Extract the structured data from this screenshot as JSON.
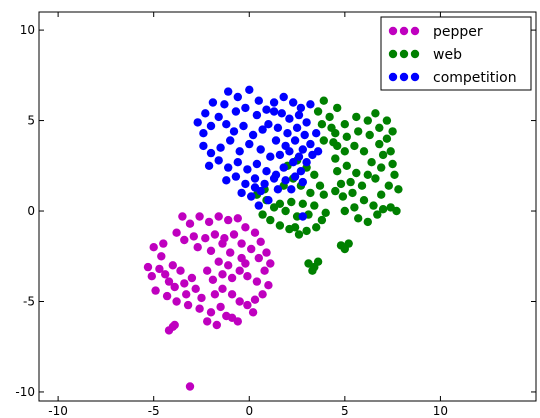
{
  "chart_data": {
    "type": "scatter",
    "title": "",
    "xlabel": "",
    "ylabel": "",
    "xlim": [
      -11,
      15
    ],
    "ylim": [
      -10.5,
      11
    ],
    "xticks": [
      -10,
      -5,
      0,
      5,
      10
    ],
    "yticks": [
      -10,
      -5,
      0,
      5,
      10
    ],
    "grid": false,
    "legend_position": "top-right",
    "series": [
      {
        "name": "pepper",
        "color": "#bf00bf",
        "points": [
          [
            -3.5,
            -0.3
          ],
          [
            -3.1,
            -0.7
          ],
          [
            -2.6,
            -0.3
          ],
          [
            -2.1,
            -0.6
          ],
          [
            -1.6,
            -0.3
          ],
          [
            -1.1,
            -0.5
          ],
          [
            -0.6,
            -0.4
          ],
          [
            -0.2,
            -0.9
          ],
          [
            0.3,
            -1.2
          ],
          [
            0.6,
            -1.7
          ],
          [
            0.9,
            -2.3
          ],
          [
            -3.8,
            -1.2
          ],
          [
            -3.4,
            -1.6
          ],
          [
            -2.9,
            -1.4
          ],
          [
            -2.3,
            -1.5
          ],
          [
            -1.8,
            -1.3
          ],
          [
            -1.3,
            -1.5
          ],
          [
            -0.8,
            -1.3
          ],
          [
            -0.4,
            -1.8
          ],
          [
            0.1,
            -2.1
          ],
          [
            0.5,
            -2.6
          ],
          [
            -2.7,
            -2.0
          ],
          [
            -2.0,
            -2.2
          ],
          [
            -1.4,
            -1.8
          ],
          [
            -1.0,
            -2.3
          ],
          [
            -0.4,
            -2.6
          ],
          [
            -5.0,
            -2.0
          ],
          [
            -4.6,
            -2.5
          ],
          [
            -5.3,
            -3.1
          ],
          [
            -4.7,
            -3.2
          ],
          [
            -5.1,
            -3.6
          ],
          [
            -4.4,
            -3.5
          ],
          [
            -4.0,
            -3.0
          ],
          [
            -3.6,
            -3.3
          ],
          [
            -4.2,
            -3.9
          ],
          [
            -3.9,
            -4.2
          ],
          [
            -3.4,
            -4.0
          ],
          [
            -3.0,
            -3.7
          ],
          [
            -2.8,
            -4.3
          ],
          [
            -3.3,
            -4.6
          ],
          [
            -2.5,
            -4.8
          ],
          [
            -4.3,
            -4.7
          ],
          [
            -3.8,
            -5.0
          ],
          [
            -3.2,
            -5.2
          ],
          [
            -2.6,
            -5.4
          ],
          [
            -2.0,
            -5.6
          ],
          [
            -1.5,
            -5.3
          ],
          [
            -1.2,
            -5.8
          ],
          [
            -0.9,
            -5.9
          ],
          [
            -1.8,
            -4.6
          ],
          [
            -1.4,
            -4.3
          ],
          [
            -0.9,
            -4.6
          ],
          [
            -0.5,
            -5.0
          ],
          [
            -0.1,
            -5.2
          ],
          [
            0.3,
            -4.9
          ],
          [
            0.7,
            -4.6
          ],
          [
            1.0,
            -4.1
          ],
          [
            -2.2,
            -3.3
          ],
          [
            -1.9,
            -3.8
          ],
          [
            -1.4,
            -3.5
          ],
          [
            -0.9,
            -3.7
          ],
          [
            -0.5,
            -3.3
          ],
          [
            -1.6,
            -2.8
          ],
          [
            -1.1,
            -3.0
          ],
          [
            -0.1,
            -3.6
          ],
          [
            0.4,
            -3.9
          ],
          [
            0.8,
            -3.3
          ],
          [
            1.1,
            -2.9
          ],
          [
            -0.2,
            -2.9
          ],
          [
            -4.5,
            -1.8
          ],
          [
            -4.9,
            -4.4
          ],
          [
            -2.2,
            -6.1
          ],
          [
            -1.7,
            -6.3
          ],
          [
            -0.6,
            -6.1
          ],
          [
            0.2,
            -5.6
          ],
          [
            -4.2,
            -6.6
          ],
          [
            -4.0,
            -6.4
          ],
          [
            -3.9,
            -6.3
          ],
          [
            -3.1,
            -9.7
          ]
        ]
      },
      {
        "name": "web",
        "color": "#008000",
        "points": [
          [
            2.0,
            2.5
          ],
          [
            2.5,
            2.8
          ],
          [
            3.0,
            2.4
          ],
          [
            3.4,
            2.0
          ],
          [
            3.7,
            1.4
          ],
          [
            3.9,
            0.9
          ],
          [
            2.3,
            1.8
          ],
          [
            1.8,
            1.4
          ],
          [
            2.7,
            1.4
          ],
          [
            3.2,
            1.0
          ],
          [
            0.8,
            1.2
          ],
          [
            0.4,
            0.9
          ],
          [
            0.9,
            0.6
          ],
          [
            1.3,
            0.2
          ],
          [
            0.7,
            -0.2
          ],
          [
            1.1,
            -0.5
          ],
          [
            1.6,
            -0.8
          ],
          [
            2.1,
            -1.0
          ],
          [
            2.6,
            -1.3
          ],
          [
            3.0,
            -1.1
          ],
          [
            3.5,
            -0.9
          ],
          [
            3.8,
            -0.5
          ],
          [
            4.0,
            -0.1
          ],
          [
            1.9,
            0.0
          ],
          [
            2.5,
            -0.3
          ],
          [
            3.1,
            -0.2
          ],
          [
            3.4,
            0.3
          ],
          [
            2.8,
            0.4
          ],
          [
            2.2,
            0.5
          ],
          [
            1.6,
            0.4
          ],
          [
            2.4,
            -0.9
          ],
          [
            3.1,
            -2.9
          ],
          [
            3.4,
            -3.1
          ],
          [
            3.6,
            -2.8
          ],
          [
            3.3,
            -3.3
          ],
          [
            4.8,
            -1.9
          ],
          [
            5.0,
            -2.1
          ],
          [
            5.2,
            -1.8
          ],
          [
            4.5,
            4.3
          ],
          [
            5.0,
            4.8
          ],
          [
            5.6,
            5.2
          ],
          [
            6.2,
            5.0
          ],
          [
            6.8,
            4.6
          ],
          [
            7.2,
            4.0
          ],
          [
            7.4,
            3.3
          ],
          [
            7.5,
            2.6
          ],
          [
            7.6,
            2.0
          ],
          [
            7.3,
            1.4
          ],
          [
            6.9,
            0.9
          ],
          [
            4.6,
            3.6
          ],
          [
            5.1,
            4.1
          ],
          [
            5.7,
            4.4
          ],
          [
            6.3,
            4.2
          ],
          [
            6.8,
            3.7
          ],
          [
            7.0,
            3.1
          ],
          [
            6.9,
            2.4
          ],
          [
            6.6,
            1.8
          ],
          [
            4.5,
            2.9
          ],
          [
            5.0,
            3.3
          ],
          [
            5.5,
            3.6
          ],
          [
            6.0,
            3.3
          ],
          [
            6.4,
            2.7
          ],
          [
            6.2,
            2.0
          ],
          [
            5.9,
            1.4
          ],
          [
            5.4,
            1.0
          ],
          [
            4.9,
            0.8
          ],
          [
            4.6,
            2.2
          ],
          [
            5.1,
            2.5
          ],
          [
            5.6,
            2.1
          ],
          [
            5.3,
            1.6
          ],
          [
            4.8,
            1.5
          ],
          [
            4.5,
            1.1
          ],
          [
            6.0,
            0.6
          ],
          [
            6.5,
            0.3
          ],
          [
            7.0,
            0.1
          ],
          [
            5.5,
            0.2
          ],
          [
            5.0,
            0.0
          ],
          [
            5.7,
            -0.4
          ],
          [
            6.2,
            -0.6
          ],
          [
            6.7,
            -0.2
          ],
          [
            7.4,
            0.2
          ],
          [
            7.8,
            1.2
          ],
          [
            7.7,
            0.0
          ],
          [
            4.2,
            5.2
          ],
          [
            3.8,
            4.8
          ],
          [
            4.3,
            4.6
          ],
          [
            3.9,
            3.9
          ],
          [
            4.4,
            3.8
          ],
          [
            3.6,
            5.5
          ],
          [
            3.9,
            6.1
          ],
          [
            4.6,
            5.7
          ],
          [
            7.2,
            5.0
          ],
          [
            6.6,
            5.4
          ],
          [
            7.5,
            4.4
          ]
        ]
      },
      {
        "name": "competition",
        "color": "#0000ff",
        "points": [
          [
            -1.1,
            6.6
          ],
          [
            -0.6,
            6.3
          ],
          [
            0.0,
            6.7
          ],
          [
            0.5,
            6.1
          ],
          [
            0.9,
            5.6
          ],
          [
            0.4,
            5.3
          ],
          [
            -0.2,
            5.7
          ],
          [
            -0.7,
            5.5
          ],
          [
            -1.3,
            5.9
          ],
          [
            -1.9,
            6.0
          ],
          [
            -2.3,
            5.4
          ],
          [
            -2.7,
            4.9
          ],
          [
            -2.4,
            4.3
          ],
          [
            -2.0,
            4.7
          ],
          [
            -1.6,
            5.2
          ],
          [
            -1.2,
            4.8
          ],
          [
            -0.8,
            4.4
          ],
          [
            -0.3,
            4.7
          ],
          [
            0.2,
            4.2
          ],
          [
            -2.4,
            3.6
          ],
          [
            -2.0,
            3.2
          ],
          [
            -1.5,
            3.5
          ],
          [
            -1.0,
            3.9
          ],
          [
            -0.5,
            3.3
          ],
          [
            0.0,
            3.7
          ],
          [
            0.6,
            3.4
          ],
          [
            1.1,
            3.0
          ],
          [
            -2.1,
            2.5
          ],
          [
            -1.6,
            2.8
          ],
          [
            -1.1,
            2.4
          ],
          [
            -0.6,
            2.7
          ],
          [
            -0.1,
            2.3
          ],
          [
            0.4,
            2.6
          ],
          [
            0.9,
            2.2
          ],
          [
            -1.2,
            1.7
          ],
          [
            -0.7,
            1.9
          ],
          [
            -0.2,
            1.5
          ],
          [
            0.3,
            1.8
          ],
          [
            0.8,
            1.5
          ],
          [
            1.3,
            1.8
          ],
          [
            -0.4,
            1.0
          ],
          [
            0.1,
            0.8
          ],
          [
            0.6,
            1.1
          ],
          [
            1.0,
            0.6
          ],
          [
            0.5,
            0.3
          ],
          [
            1.3,
            6.0
          ],
          [
            1.8,
            6.3
          ],
          [
            2.3,
            6.0
          ],
          [
            2.7,
            5.7
          ],
          [
            3.2,
            5.9
          ],
          [
            1.7,
            5.4
          ],
          [
            2.1,
            5.1
          ],
          [
            2.6,
            5.3
          ],
          [
            3.0,
            4.9
          ],
          [
            1.5,
            4.6
          ],
          [
            2.0,
            4.3
          ],
          [
            2.5,
            4.6
          ],
          [
            2.9,
            4.2
          ],
          [
            3.2,
            3.7
          ],
          [
            1.4,
            3.9
          ],
          [
            1.9,
            3.6
          ],
          [
            2.4,
            3.9
          ],
          [
            2.8,
            3.4
          ],
          [
            1.6,
            3.1
          ],
          [
            2.1,
            3.3
          ],
          [
            2.6,
            3.0
          ],
          [
            3.0,
            2.7
          ],
          [
            1.8,
            2.4
          ],
          [
            2.3,
            2.7
          ],
          [
            2.7,
            2.2
          ],
          [
            1.4,
            2.0
          ],
          [
            1.9,
            1.7
          ],
          [
            2.4,
            1.9
          ],
          [
            1.0,
            4.8
          ],
          [
            1.3,
            5.5
          ],
          [
            0.7,
            4.5
          ],
          [
            3.3,
            3.1
          ],
          [
            2.8,
            1.6
          ],
          [
            3.5,
            4.3
          ],
          [
            2.2,
            1.2
          ],
          [
            1.5,
            1.2
          ],
          [
            0.3,
            1.3
          ],
          [
            3.6,
            3.3
          ],
          [
            2.8,
            -0.3
          ]
        ]
      }
    ]
  }
}
